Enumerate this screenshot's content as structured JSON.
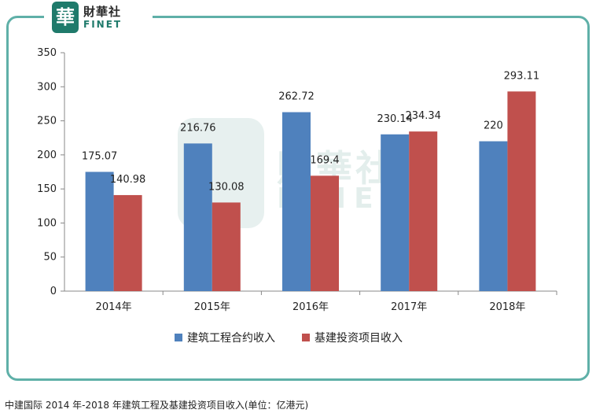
{
  "logo": {
    "mark": "華",
    "text_cn": "財華社",
    "text_en": "FINET"
  },
  "watermark": {
    "mark": "華",
    "text_cn": "財華社",
    "text_en": "FINET"
  },
  "caption": "中建国际 2014 年-2018 年建筑工程及基建投资项目收入(单位：亿港元)",
  "chart_data": {
    "type": "bar",
    "title": "",
    "xlabel": "",
    "ylabel": "",
    "categories": [
      "2014年",
      "2015年",
      "2016年",
      "2017年",
      "2018年"
    ],
    "ylim": [
      0,
      350
    ],
    "yticks": [
      0,
      50,
      100,
      150,
      200,
      250,
      300,
      350
    ],
    "grid": false,
    "legend_position": "bottom",
    "series": [
      {
        "name": "建筑工程合约收入",
        "color": "#4f81bd",
        "values": [
          175.07,
          216.76,
          262.72,
          230.14,
          220
        ],
        "labels": [
          "175.07",
          "216.76",
          "262.72",
          "230.14",
          "220"
        ]
      },
      {
        "name": "基建投资项目收入",
        "color": "#c0504d",
        "values": [
          140.98,
          130.08,
          169.4,
          234.34,
          293.11
        ],
        "labels": [
          "140.98",
          "130.08",
          "169.4",
          "234.34",
          "293.11"
        ]
      }
    ]
  }
}
